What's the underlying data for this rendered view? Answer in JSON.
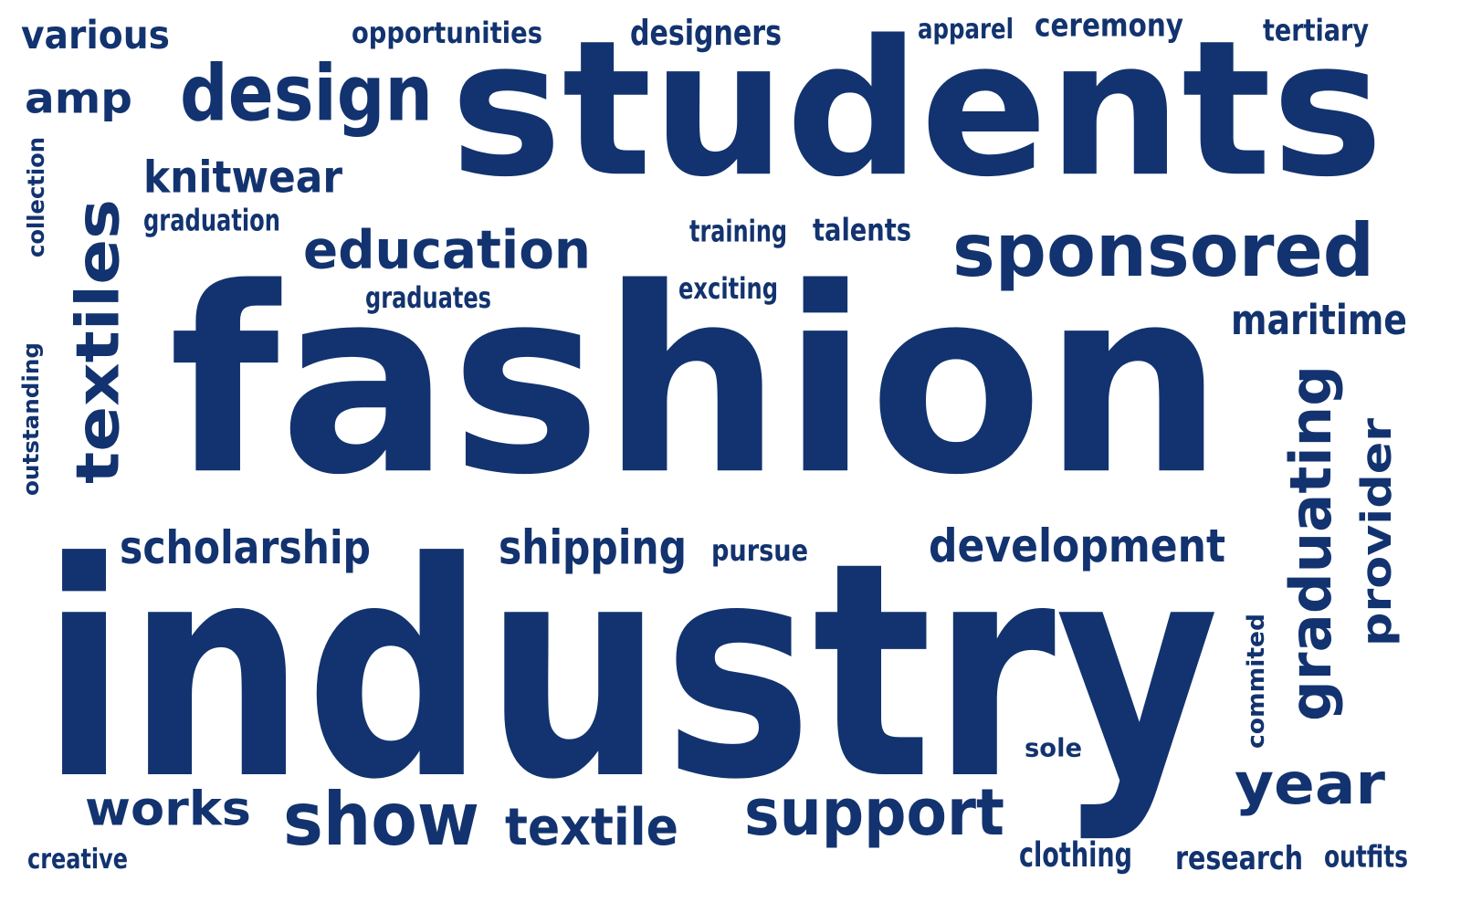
{
  "color": "#12336f",
  "words": [
    {
      "text": "fashion",
      "orientation": "horizontal"
    },
    {
      "text": "industry",
      "orientation": "horizontal"
    },
    {
      "text": "students",
      "orientation": "horizontal"
    },
    {
      "text": "design",
      "orientation": "horizontal"
    },
    {
      "text": "sponsored",
      "orientation": "horizontal"
    },
    {
      "text": "education",
      "orientation": "horizontal"
    },
    {
      "text": "textiles",
      "orientation": "vertical"
    },
    {
      "text": "graduating",
      "orientation": "vertical"
    },
    {
      "text": "support",
      "orientation": "horizontal"
    },
    {
      "text": "show",
      "orientation": "horizontal"
    },
    {
      "text": "year",
      "orientation": "horizontal"
    },
    {
      "text": "provider",
      "orientation": "vertical"
    },
    {
      "text": "textile",
      "orientation": "horizontal"
    },
    {
      "text": "development",
      "orientation": "horizontal"
    },
    {
      "text": "works",
      "orientation": "horizontal"
    },
    {
      "text": "knitwear",
      "orientation": "horizontal"
    },
    {
      "text": "scholarship",
      "orientation": "horizontal"
    },
    {
      "text": "shipping",
      "orientation": "horizontal"
    },
    {
      "text": "maritime",
      "orientation": "horizontal"
    },
    {
      "text": "various",
      "orientation": "horizontal"
    },
    {
      "text": "amp",
      "orientation": "horizontal"
    },
    {
      "text": "designers",
      "orientation": "horizontal"
    },
    {
      "text": "research",
      "orientation": "horizontal"
    },
    {
      "text": "ceremony",
      "orientation": "horizontal"
    },
    {
      "text": "clothing",
      "orientation": "horizontal"
    },
    {
      "text": "tertiary",
      "orientation": "horizontal"
    },
    {
      "text": "talents",
      "orientation": "horizontal"
    },
    {
      "text": "opportunities",
      "orientation": "horizontal"
    },
    {
      "text": "outfits",
      "orientation": "horizontal"
    },
    {
      "text": "training",
      "orientation": "horizontal"
    },
    {
      "text": "graduation",
      "orientation": "horizontal"
    },
    {
      "text": "graduates",
      "orientation": "horizontal"
    },
    {
      "text": "exciting",
      "orientation": "horizontal"
    },
    {
      "text": "pursue",
      "orientation": "horizontal"
    },
    {
      "text": "sole",
      "orientation": "horizontal"
    },
    {
      "text": "apparel",
      "orientation": "horizontal"
    },
    {
      "text": "creative",
      "orientation": "horizontal"
    },
    {
      "text": "collection",
      "orientation": "vertical"
    },
    {
      "text": "outstanding",
      "orientation": "vertical"
    },
    {
      "text": "commited",
      "orientation": "vertical"
    }
  ]
}
